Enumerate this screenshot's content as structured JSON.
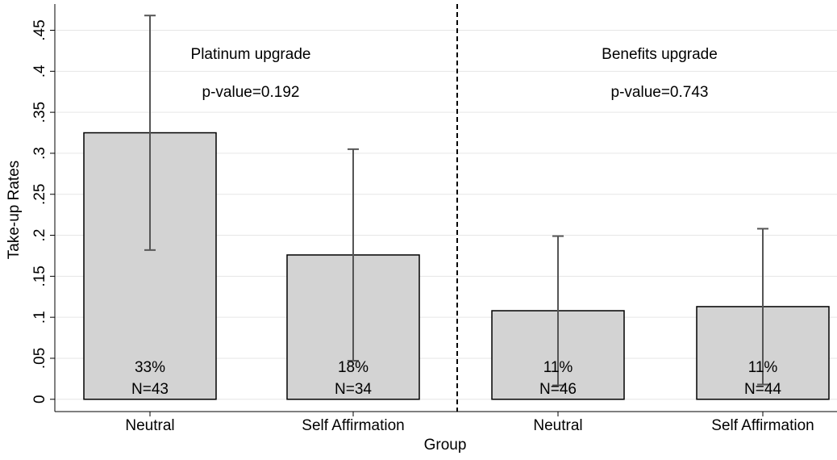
{
  "chart_data": {
    "type": "bar",
    "x_label": "Group",
    "y_label": "Take-up Rates",
    "panels": [
      {
        "title": "Platinum upgrade",
        "p_value": "p-value=0.192"
      },
      {
        "title": "Benefits upgrade",
        "p_value": "p-value=0.743"
      }
    ],
    "categories": [
      "Neutral",
      "Self Affirmation",
      "Neutral",
      "Self Affirmation"
    ],
    "values": [
      0.325,
      0.176,
      0.108,
      0.113
    ],
    "value_labels": [
      "33%",
      "18%",
      "11%",
      "11%"
    ],
    "count_labels": [
      "N=43",
      "N=34",
      "N=46",
      "N=44"
    ],
    "ci_low": [
      0.182,
      0.047,
      0.017,
      0.018
    ],
    "ci_high": [
      0.468,
      0.305,
      0.199,
      0.208
    ],
    "color": "#d3d3d3",
    "ylim": [
      -0.015,
      0.482
    ],
    "yticks": [
      0,
      {
        "value": 0.05,
        "label": ".05"
      },
      {
        "value": 0.1,
        "label": ".1"
      },
      {
        "value": 0.15,
        "label": ".15"
      },
      {
        "value": 0.2,
        "label": ".2"
      },
      {
        "value": 0.25,
        "label": ".25"
      },
      {
        "value": 0.3,
        "label": ".3"
      },
      {
        "value": 0.35,
        "label": ".35"
      },
      {
        "value": 0.4,
        "label": ".4"
      },
      {
        "value": 0.45,
        "label": ".45"
      }
    ],
    "grid": true
  }
}
